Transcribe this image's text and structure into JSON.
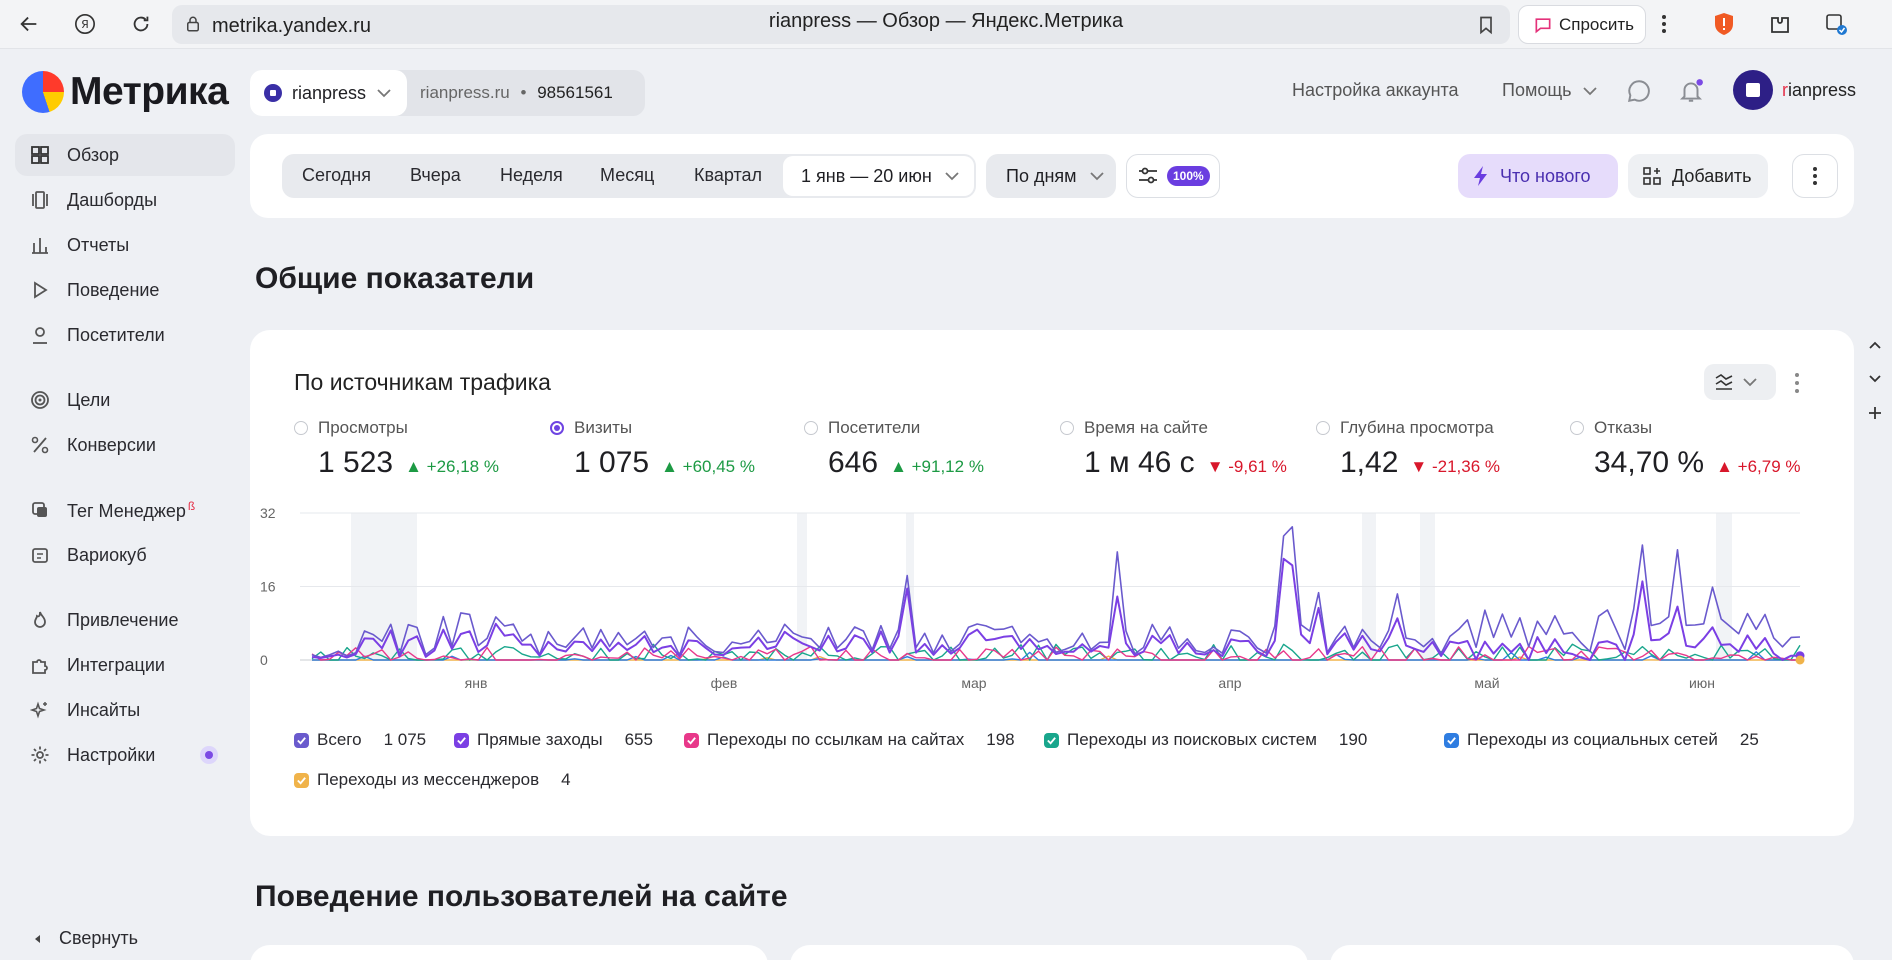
{
  "browser": {
    "url": "metrika.yandex.ru",
    "tab_title": "rianpress — Обзор — Яндекс.Метрика",
    "ask_label": "Спросить"
  },
  "logo": {
    "text": "Метрика"
  },
  "sidebar": {
    "items": [
      {
        "label": "Обзор",
        "icon": "grid-icon"
      },
      {
        "label": "Дашборды",
        "icon": "dashboards-icon"
      },
      {
        "label": "Отчеты",
        "icon": "bar-chart-icon"
      },
      {
        "label": "Поведение",
        "icon": "play-icon"
      },
      {
        "label": "Посетители",
        "icon": "user-icon"
      },
      {
        "label": "Цели",
        "icon": "target-icon"
      },
      {
        "label": "Конверсии",
        "icon": "percent-icon"
      },
      {
        "label": "Тег Менеджер",
        "icon": "tag-manager-icon",
        "beta": "ß"
      },
      {
        "label": "Вариокуб",
        "icon": "variocube-icon"
      },
      {
        "label": "Привлечение",
        "icon": "flame-icon"
      },
      {
        "label": "Интеграции",
        "icon": "puzzle-icon"
      },
      {
        "label": "Инсайты",
        "icon": "sparkle-icon"
      },
      {
        "label": "Настройки",
        "icon": "gear-icon"
      }
    ],
    "collapse_label": "Свернуть"
  },
  "header": {
    "counter_name": "rianpress",
    "counter_site": "rianpress.ru",
    "counter_separator": "•",
    "counter_id": "98561561",
    "account_settings": "Настройка аккаунта",
    "help": "Помощь",
    "user_name_first": "r",
    "user_name_rest": "ianpress"
  },
  "toolbar": {
    "periods": [
      "Сегодня",
      "Вчера",
      "Неделя",
      "Месяц",
      "Квартал"
    ],
    "date_range": "1 янв — 20 июн",
    "grouping": "По дням",
    "sampling": "100%",
    "whats_new": "Что нового",
    "add": "Добавить"
  },
  "sections": {
    "overview_title": "Общие показатели",
    "behavior_title": "Поведение пользователей на сайте"
  },
  "traffic_card": {
    "title": "По источникам трафика",
    "metrics": [
      {
        "label": "Просмотры",
        "value": "1 523",
        "delta": "+26,18 %",
        "arrow": "▲",
        "trend": "up",
        "selected": false
      },
      {
        "label": "Визиты",
        "value": "1 075",
        "delta": "+60,45 %",
        "arrow": "▲",
        "trend": "up",
        "selected": true
      },
      {
        "label": "Посетители",
        "value": "646",
        "delta": "+91,12 %",
        "arrow": "▲",
        "trend": "up",
        "selected": false
      },
      {
        "label": "Время на сайте",
        "value": "1 м 46 с",
        "delta": "-9,61 %",
        "arrow": "▼",
        "trend": "down",
        "selected": false
      },
      {
        "label": "Глубина просмотра",
        "value": "1,42",
        "delta": "-21,36 %",
        "arrow": "▼",
        "trend": "down",
        "selected": false
      },
      {
        "label": "Отказы",
        "value": "34,70 %",
        "delta": "+6,79 %",
        "arrow": "▲",
        "trend": "up-red",
        "selected": false
      }
    ]
  },
  "chart_data": {
    "type": "line",
    "x_ticks": [
      "янв",
      "фев",
      "мар",
      "апр",
      "май",
      "июн"
    ],
    "y_ticks": [
      0,
      16,
      32
    ],
    "ylim": [
      0,
      32
    ],
    "series": [
      {
        "name": "Всего",
        "total": "1 075",
        "color": "#6a5acd"
      },
      {
        "name": "Прямые заходы",
        "total": "655",
        "color": "#7b3fe4"
      },
      {
        "name": "Переходы по ссылкам на сайтах",
        "total": "198",
        "color": "#e8388a"
      },
      {
        "name": "Переходы из поисковых систем",
        "total": "190",
        "color": "#19a68c"
      },
      {
        "name": "Переходы из социальных сетей",
        "total": "25",
        "color": "#2f7de1"
      },
      {
        "name": "Переходы из мессенджеров",
        "total": "4",
        "color": "#f0b34a"
      }
    ]
  }
}
